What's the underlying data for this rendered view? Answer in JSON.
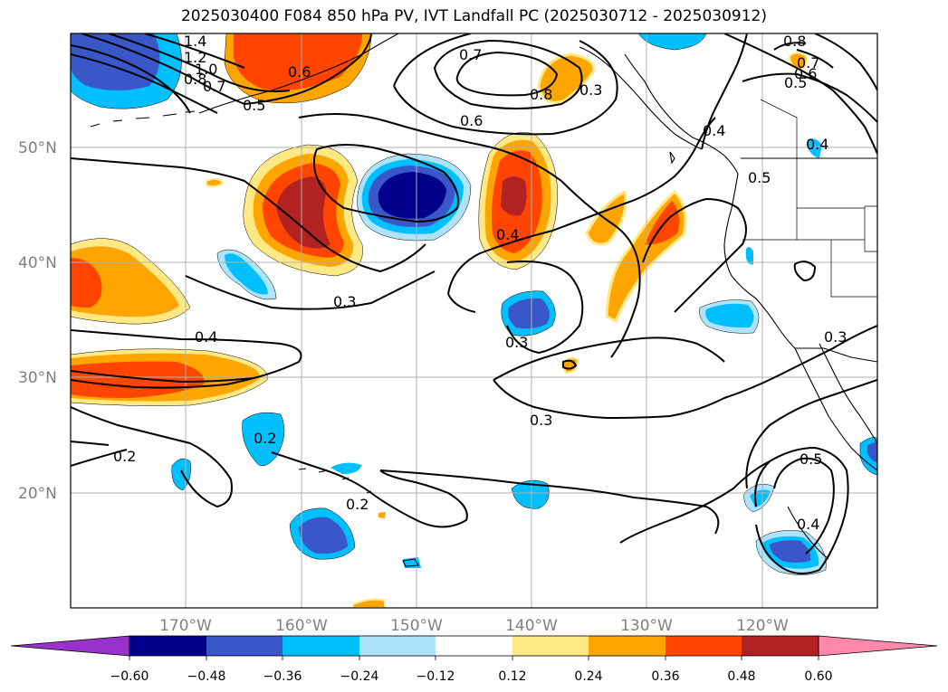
{
  "title": "2025030400 F084 850 hPa PV, IVT Landfall PC (2025030712 - 2025030912)",
  "map": {
    "lon_range": [
      180,
      -110
    ],
    "lat_range": [
      10,
      60
    ],
    "lat_ticks": [
      {
        "value": 50,
        "label": "50°N"
      },
      {
        "value": 40,
        "label": "40°N"
      },
      {
        "value": 30,
        "label": "30°N"
      },
      {
        "value": 20,
        "label": "20°N"
      }
    ],
    "lon_ticks": [
      {
        "value": -170,
        "label": "170°W"
      },
      {
        "value": -160,
        "label": "160°W"
      },
      {
        "value": -150,
        "label": "150°W"
      },
      {
        "value": -140,
        "label": "140°W"
      },
      {
        "value": -130,
        "label": "130°W"
      },
      {
        "value": -120,
        "label": "120°W"
      }
    ],
    "grid": true
  },
  "contour_labels": [
    "1.4",
    "1.2",
    "1.0",
    "0.8",
    "0.7",
    "0.5",
    "0.6",
    "0.7",
    "0.8",
    "0.6",
    "0.4",
    "0.8",
    "0.7",
    "0.6",
    "0.5",
    "0.4",
    "0.5",
    "0.4",
    "0.3",
    "0.4",
    "0.3",
    "0.3",
    "0.3",
    "0.2",
    "0.2",
    "0.2",
    "0.5",
    "0.4",
    "0.3"
  ],
  "colorbar": {
    "ticks": [
      "−0.60",
      "−0.48",
      "−0.36",
      "−0.24",
      "−0.12",
      "0.12",
      "0.24",
      "0.36",
      "0.48",
      "0.60"
    ],
    "colors": [
      "#9932cc",
      "#00008b",
      "#3a57c9",
      "#00bfff",
      "#ade4fc",
      "#ffffff",
      "#ffe985",
      "#ffa500",
      "#ff4500",
      "#b22222",
      "#ff88aa"
    ]
  }
}
